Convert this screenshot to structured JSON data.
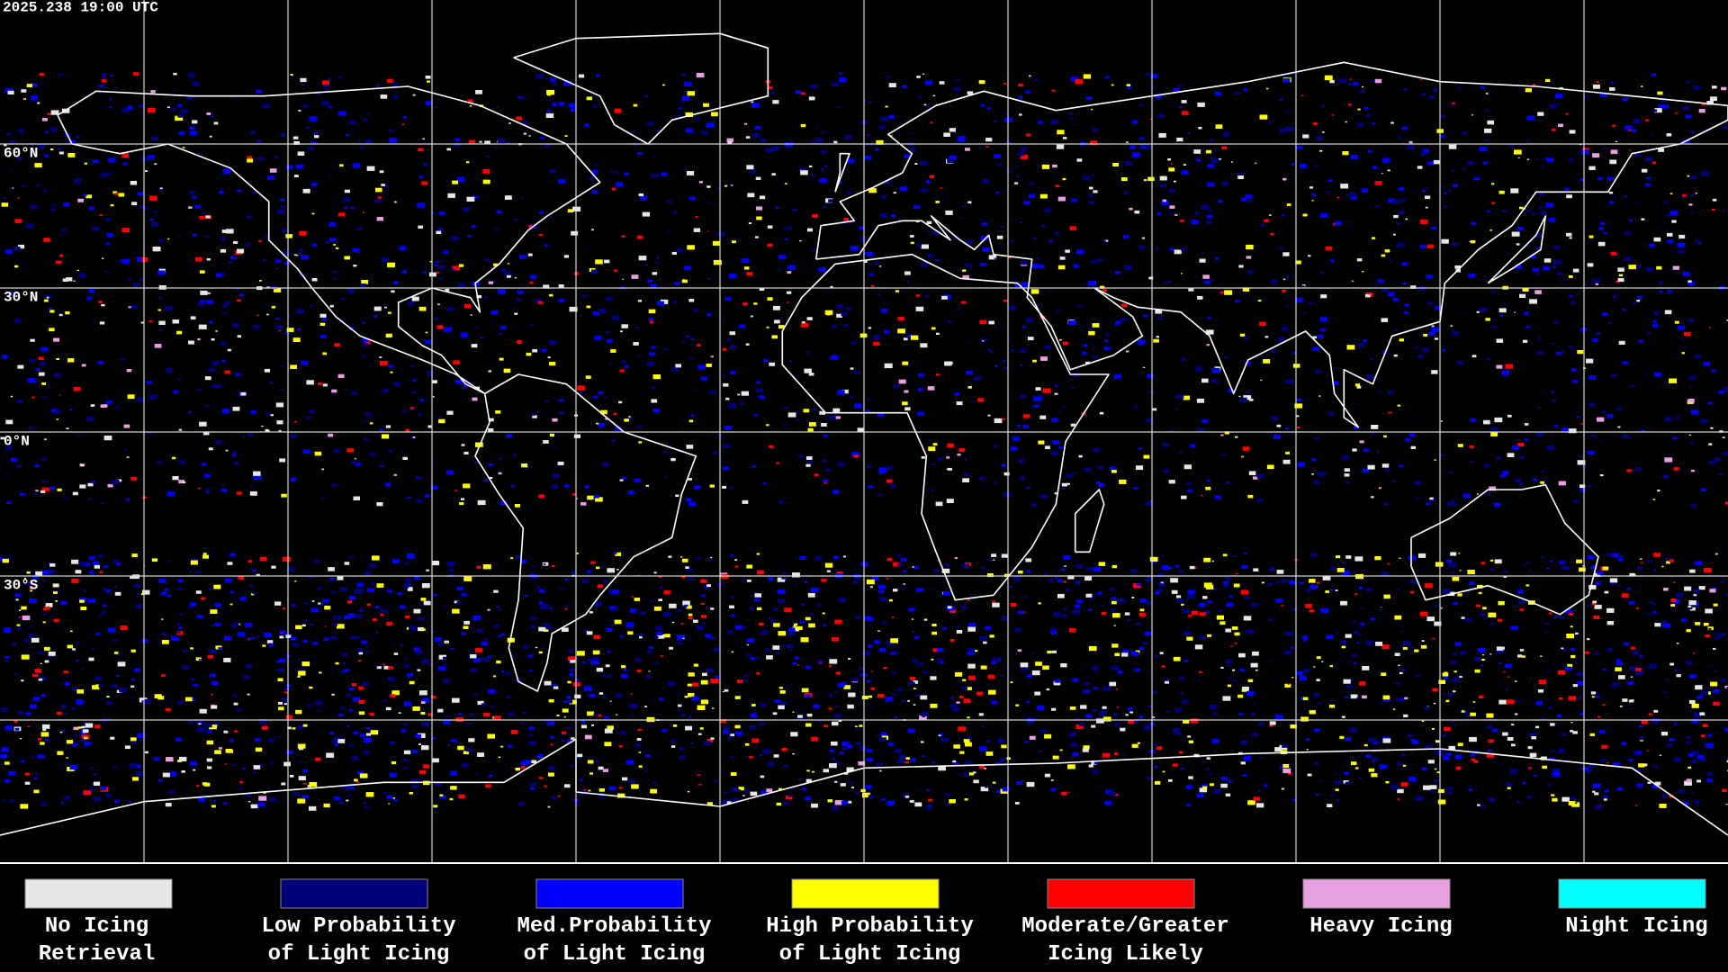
{
  "timestamp": "2025.238 19:00 UTC",
  "latitude_labels": [
    "60°N",
    "30°N",
    "0°N",
    "30°S"
  ],
  "legend": [
    {
      "lines": [
        "No Icing",
        "Retrieval"
      ],
      "color": "#e6e6e6"
    },
    {
      "lines": [
        "Low Probability",
        "of Light Icing"
      ],
      "color": "#00007a"
    },
    {
      "lines": [
        "Med.Probability",
        "of Light Icing"
      ],
      "color": "#0000ff"
    },
    {
      "lines": [
        "High Probability",
        "of Light Icing"
      ],
      "color": "#ffff00"
    },
    {
      "lines": [
        "Moderate/Greater",
        "Icing Likely"
      ],
      "color": "#ff0000"
    },
    {
      "lines": [
        "Heavy Icing"
      ],
      "color": "#e8a0e0"
    },
    {
      "lines": [
        "Night Icing"
      ],
      "color": "#00ffff"
    }
  ]
}
